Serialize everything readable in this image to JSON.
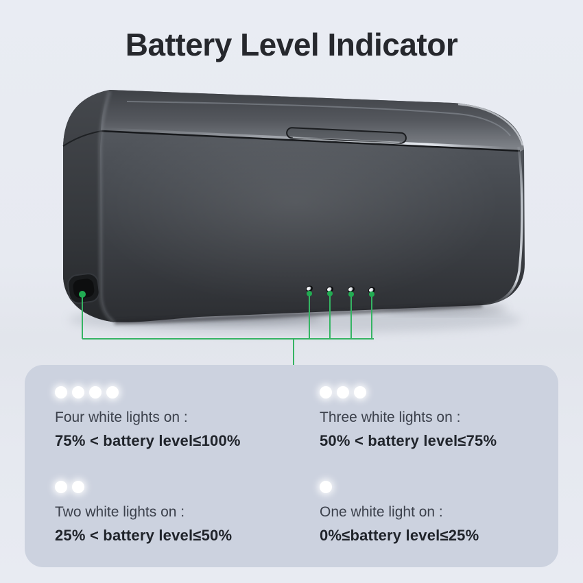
{
  "page": {
    "title": "Battery Level Indicator",
    "background_color": "#e7eaf1"
  },
  "colors": {
    "accent_green": "#35b463",
    "green_dot": "#21ac52",
    "panel_background": "#ccd2df",
    "title_text": "#26282d",
    "label_text": "#3b404b",
    "value_text": "#20242b",
    "light_dot": "#ffffff",
    "device_dark": "#2c2e32",
    "device_light": "#5d6167"
  },
  "device": {
    "led_count": 4
  },
  "legend": {
    "items": [
      {
        "lights": 4,
        "label": "Four white lights on :",
        "range": "75% < battery level≤100%"
      },
      {
        "lights": 3,
        "label": "Three white lights on :",
        "range": "50% < battery level≤75%"
      },
      {
        "lights": 2,
        "label": "Two white lights on :",
        "range": "25% < battery level≤50%"
      },
      {
        "lights": 1,
        "label": "One white light on :",
        "range": "0%≤battery level≤25%"
      }
    ]
  }
}
